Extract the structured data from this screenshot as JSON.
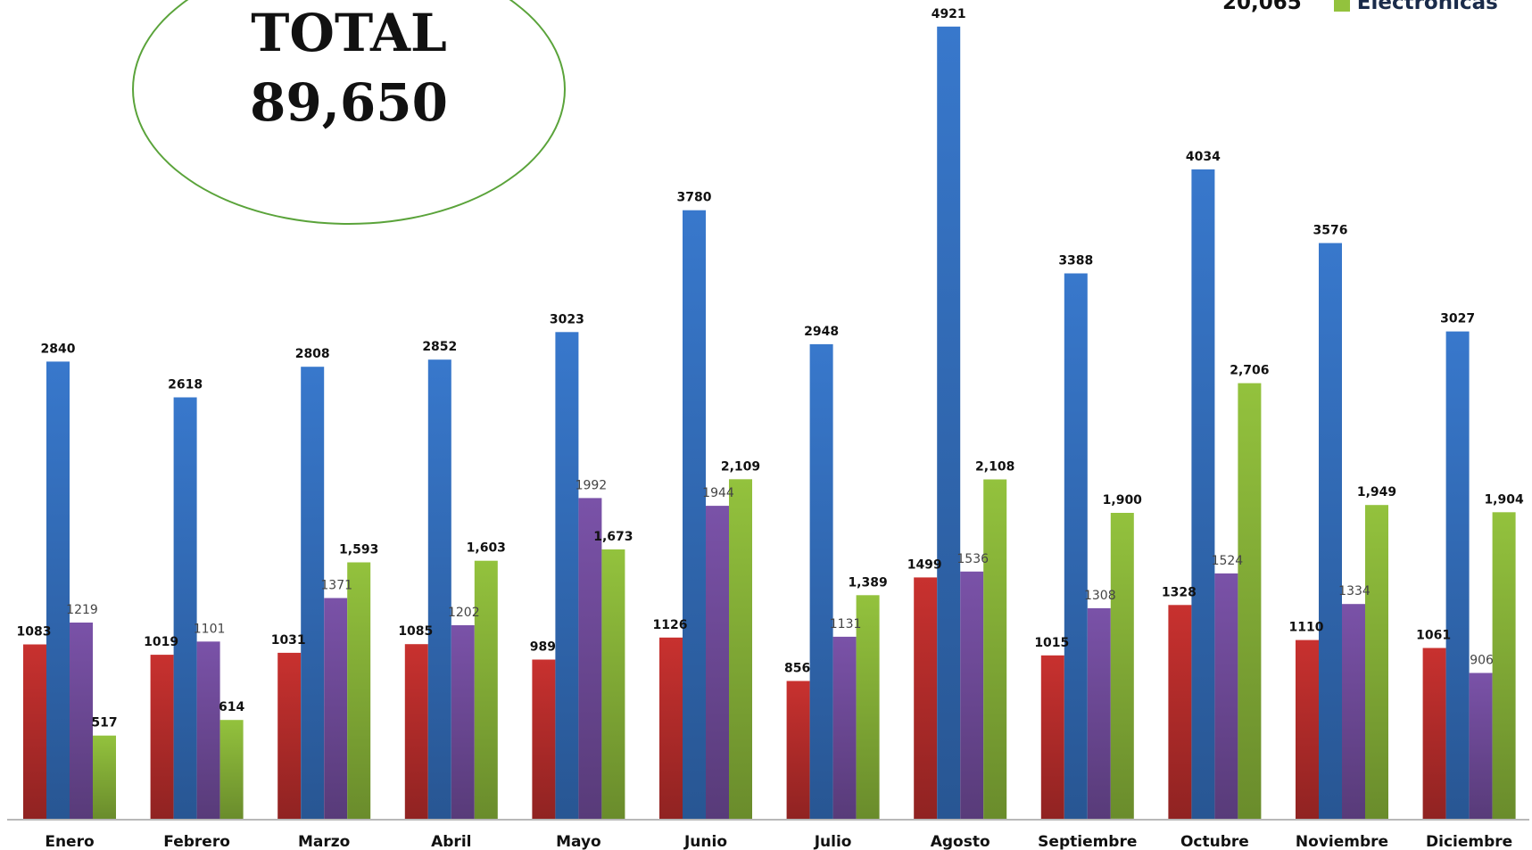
{
  "total": {
    "label": "TOTAL",
    "value": "89,650"
  },
  "legend": {
    "count": "20,065",
    "series_label": "Electronicas",
    "color": "#93c23d"
  },
  "chart_data": {
    "type": "bar",
    "categories": [
      "Enero",
      "Febrero",
      "Marzo",
      "Abril",
      "Mayo",
      "Junio",
      "Julio",
      "Agosto",
      "Septiembre",
      "Octubre",
      "Noviembre",
      "Diciembre"
    ],
    "ylim": [
      0,
      5100
    ],
    "grid": false,
    "legend": "top-right",
    "series": [
      {
        "color": "#c8312f",
        "values": [
          1083,
          1019,
          1031,
          1085,
          989,
          1126,
          856,
          1499,
          1015,
          1328,
          1110,
          1061
        ],
        "labels": [
          "1083",
          "1019",
          "1031",
          "1085",
          "989",
          "1126",
          "856",
          "1499",
          "1015",
          "1328",
          "1110",
          "1061"
        ]
      },
      {
        "color": "#3878cc",
        "values": [
          2840,
          2618,
          2808,
          2852,
          3023,
          3780,
          2948,
          4921,
          3388,
          4034,
          3576,
          3027
        ],
        "labels": [
          "2840",
          "2618",
          "2808",
          "2852",
          "3023",
          "3780",
          "2948",
          "4921",
          "3388",
          "4034",
          "3576",
          "3027"
        ]
      },
      {
        "color": "#7a52a8",
        "values": [
          1219,
          1101,
          1371,
          1202,
          1992,
          1944,
          1131,
          1536,
          1308,
          1524,
          1334,
          906
        ],
        "labels": [
          "1219",
          "1101",
          "1371",
          "1202",
          "1992",
          "1944",
          "1131",
          "1536",
          "1308",
          "1524",
          "1334",
          "906"
        ]
      },
      {
        "name": "Electronicas",
        "color": "#93c23d",
        "values": [
          517,
          614,
          1593,
          1603,
          1673,
          2109,
          1389,
          2108,
          1900,
          2706,
          1949,
          1904
        ],
        "labels": [
          "517",
          "614",
          "1,593",
          "1,603",
          "1,673",
          "2,109",
          "1,389",
          "2,108",
          "1,900",
          "2,706",
          "1,949",
          "1,904"
        ]
      }
    ]
  }
}
